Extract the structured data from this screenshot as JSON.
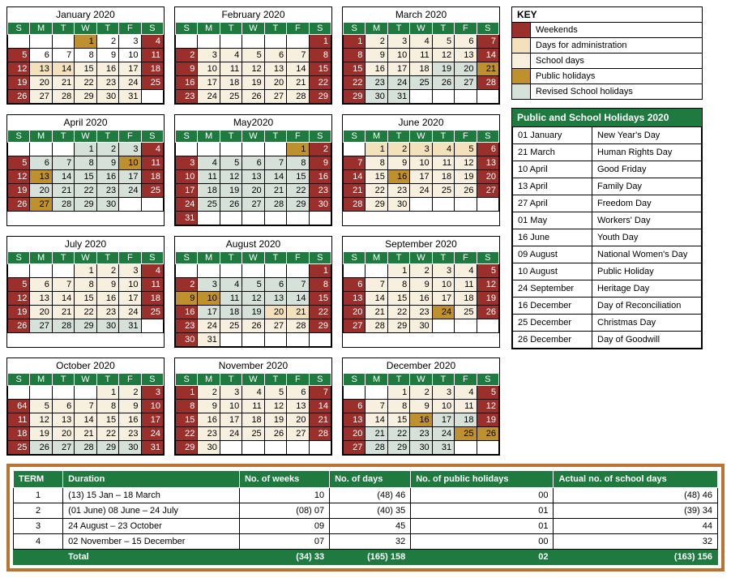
{
  "dow": [
    "S",
    "M",
    "T",
    "W",
    "T",
    "F",
    "S"
  ],
  "colors": {
    "wknd": "#9b2f2b",
    "admin": "#f3e1bc",
    "school": "#f8f0df",
    "pub": "#bf912e",
    "rev": "#d6e1d9",
    "head": "#1e7a3f",
    "term_border": "#b87430"
  },
  "months": [
    {
      "title": "January 2020",
      "start": 3,
      "days": 31,
      "map": {
        "1": "pub",
        "13": "admin",
        "14": "admin",
        "15": "school",
        "16": "school",
        "17": "school",
        "20": "school",
        "21": "school",
        "22": "school",
        "23": "school",
        "24": "school",
        "27": "school",
        "28": "school",
        "29": "school",
        "30": "school",
        "31": "school"
      }
    },
    {
      "title": "February 2020",
      "start": 6,
      "days": 29,
      "map": {
        "3": "school",
        "4": "school",
        "5": "school",
        "6": "school",
        "7": "school",
        "10": "school",
        "11": "school",
        "12": "school",
        "13": "school",
        "14": "school",
        "17": "school",
        "18": "school",
        "19": "school",
        "20": "school",
        "21": "school",
        "24": "school",
        "25": "school",
        "26": "school",
        "27": "school",
        "28": "school"
      }
    },
    {
      "title": "March 2020",
      "start": 0,
      "days": 31,
      "map": {
        "2": "school",
        "3": "school",
        "4": "school",
        "5": "school",
        "6": "school",
        "9": "school",
        "10": "school",
        "11": "school",
        "12": "school",
        "13": "school",
        "16": "school",
        "17": "school",
        "18": "school",
        "19": "rev",
        "20": "rev",
        "21": "pub",
        "23": "rev",
        "24": "rev",
        "25": "rev",
        "26": "rev",
        "27": "rev",
        "30": "rev",
        "31": "rev"
      }
    },
    {
      "title": "April 2020",
      "start": 3,
      "days": 30,
      "map": {
        "1": "rev",
        "2": "rev",
        "3": "rev",
        "6": "rev",
        "7": "rev",
        "8": "rev",
        "9": "rev",
        "10": "pub",
        "13": "pub",
        "14": "rev",
        "15": "rev",
        "16": "rev",
        "17": "rev",
        "20": "rev",
        "21": "rev",
        "22": "rev",
        "23": "rev",
        "24": "rev",
        "27": "pub",
        "28": "rev",
        "29": "rev",
        "30": "rev"
      }
    },
    {
      "title": "May2020",
      "start": 5,
      "days": 31,
      "map": {
        "1": "pub",
        "4": "rev",
        "5": "rev",
        "6": "rev",
        "7": "rev",
        "8": "rev",
        "11": "rev",
        "12": "rev",
        "13": "rev",
        "14": "rev",
        "15": "rev",
        "18": "rev",
        "19": "rev",
        "20": "rev",
        "21": "rev",
        "22": "rev",
        "25": "rev",
        "26": "rev",
        "27": "rev",
        "28": "rev",
        "29": "rev"
      }
    },
    {
      "title": "June 2020",
      "start": 1,
      "days": 30,
      "map": {
        "1": "admin",
        "2": "admin",
        "3": "admin",
        "4": "admin",
        "5": "admin",
        "8": "school",
        "9": "school",
        "10": "school",
        "11": "school",
        "12": "school",
        "15": "school",
        "16": "pub",
        "17": "school",
        "18": "school",
        "19": "school",
        "22": "school",
        "23": "school",
        "24": "school",
        "25": "school",
        "26": "school",
        "29": "school",
        "30": "school"
      }
    },
    {
      "title": "July 2020",
      "start": 3,
      "days": 31,
      "map": {
        "1": "school",
        "2": "school",
        "3": "school",
        "6": "school",
        "7": "school",
        "8": "school",
        "9": "school",
        "10": "school",
        "13": "school",
        "14": "school",
        "15": "school",
        "16": "school",
        "17": "school",
        "20": "school",
        "21": "school",
        "22": "school",
        "23": "school",
        "24": "school",
        "27": "rev",
        "28": "rev",
        "29": "rev",
        "30": "rev",
        "31": "rev"
      }
    },
    {
      "title": "August 2020",
      "start": 6,
      "days": 31,
      "map": {
        "3": "rev",
        "4": "rev",
        "5": "rev",
        "6": "rev",
        "7": "rev",
        "9": "pub",
        "10": "pub",
        "11": "rev",
        "12": "rev",
        "13": "rev",
        "14": "rev",
        "17": "rev",
        "18": "rev",
        "19": "rev",
        "20": "admin",
        "21": "admin",
        "24": "school",
        "25": "school",
        "26": "school",
        "27": "school",
        "28": "school",
        "31": "school"
      }
    },
    {
      "title": "September 2020",
      "start": 2,
      "days": 30,
      "map": {
        "1": "school",
        "2": "school",
        "3": "school",
        "4": "school",
        "7": "school",
        "8": "school",
        "9": "school",
        "10": "school",
        "11": "school",
        "14": "school",
        "15": "school",
        "16": "school",
        "17": "school",
        "18": "school",
        "21": "school",
        "22": "school",
        "23": "school",
        "24": "pub",
        "25": "school",
        "28": "school",
        "29": "school",
        "30": "school"
      }
    },
    {
      "title": "October 2020",
      "start": 4,
      "days": 31,
      "map": {
        "1": "school",
        "2": "school",
        "64": "school",
        "5": "school",
        "6": "school",
        "7": "school",
        "8": "school",
        "9": "school",
        "12": "school",
        "13": "school",
        "14": "school",
        "15": "school",
        "16": "school",
        "19": "school",
        "20": "school",
        "21": "school",
        "22": "school",
        "23": "school",
        "26": "rev",
        "27": "rev",
        "28": "rev",
        "29": "rev",
        "30": "rev"
      },
      "override": {
        "4": "64"
      }
    },
    {
      "title": "November 2020",
      "start": 0,
      "days": 30,
      "map": {
        "2": "school",
        "3": "school",
        "4": "school",
        "5": "school",
        "6": "school",
        "9": "school",
        "10": "school",
        "11": "school",
        "12": "school",
        "13": "school",
        "16": "school",
        "17": "school",
        "18": "school",
        "19": "school",
        "20": "school",
        "23": "school",
        "24": "school",
        "25": "school",
        "26": "school",
        "27": "school",
        "30": "school"
      }
    },
    {
      "title": "December 2020",
      "start": 2,
      "days": 31,
      "map": {
        "1": "school",
        "2": "school",
        "3": "school",
        "4": "school",
        "7": "school",
        "8": "school",
        "9": "school",
        "10": "school",
        "11": "school",
        "14": "school",
        "15": "school",
        "16": "pub",
        "17": "rev",
        "18": "rev",
        "21": "rev",
        "22": "rev",
        "23": "rev",
        "24": "rev",
        "25": "pub",
        "26": "pub",
        "28": "rev",
        "29": "rev",
        "30": "rev",
        "31": "rev"
      }
    }
  ],
  "key": {
    "title": "KEY",
    "items": [
      {
        "c": "wknd",
        "l": "Weekends"
      },
      {
        "c": "admin",
        "l": "Days for administration"
      },
      {
        "c": "school",
        "l": "School days"
      },
      {
        "c": "pub",
        "l": "Public holidays"
      },
      {
        "c": "rev",
        "l": "Revised School holidays"
      }
    ]
  },
  "holidays": {
    "title": "Public and School Holidays 2020",
    "rows": [
      [
        "01 January",
        "New Year's Day"
      ],
      [
        "21 March",
        "Human Rights Day"
      ],
      [
        "10 April",
        "Good Friday"
      ],
      [
        "13 April",
        "Family Day"
      ],
      [
        "27 April",
        "Freedom Day"
      ],
      [
        "01 May",
        "Workers' Day"
      ],
      [
        "16 June",
        "Youth Day"
      ],
      [
        "09 August",
        "National Women's Day"
      ],
      [
        "10 August",
        "Public Holiday"
      ],
      [
        "24 September",
        "Heritage Day"
      ],
      [
        "16 December",
        "Day of Reconciliation"
      ],
      [
        "25 December",
        "Christmas Day"
      ],
      [
        "26 December",
        "Day of Goodwill"
      ]
    ]
  },
  "terms": {
    "headers": [
      "TERM",
      "Duration",
      "No. of weeks",
      "No. of days",
      "No. of public holidays",
      "Actual no. of school days"
    ],
    "rows": [
      [
        "1",
        "(13) 15 Jan – 18 March",
        "10",
        "(48) 46",
        "00",
        "(48) 46"
      ],
      [
        "2",
        "(01 June) 08 June – 24 July",
        "(08) 07",
        "(40) 35",
        "01",
        "(39) 34"
      ],
      [
        "3",
        "24 August – 23 October",
        "09",
        "45",
        "01",
        "44"
      ],
      [
        "4",
        "02 November – 15 December",
        "07",
        "32",
        "00",
        "32"
      ]
    ],
    "total": [
      "",
      "Total",
      "(34) 33",
      "(165) 158",
      "02",
      "(163) 156"
    ]
  }
}
